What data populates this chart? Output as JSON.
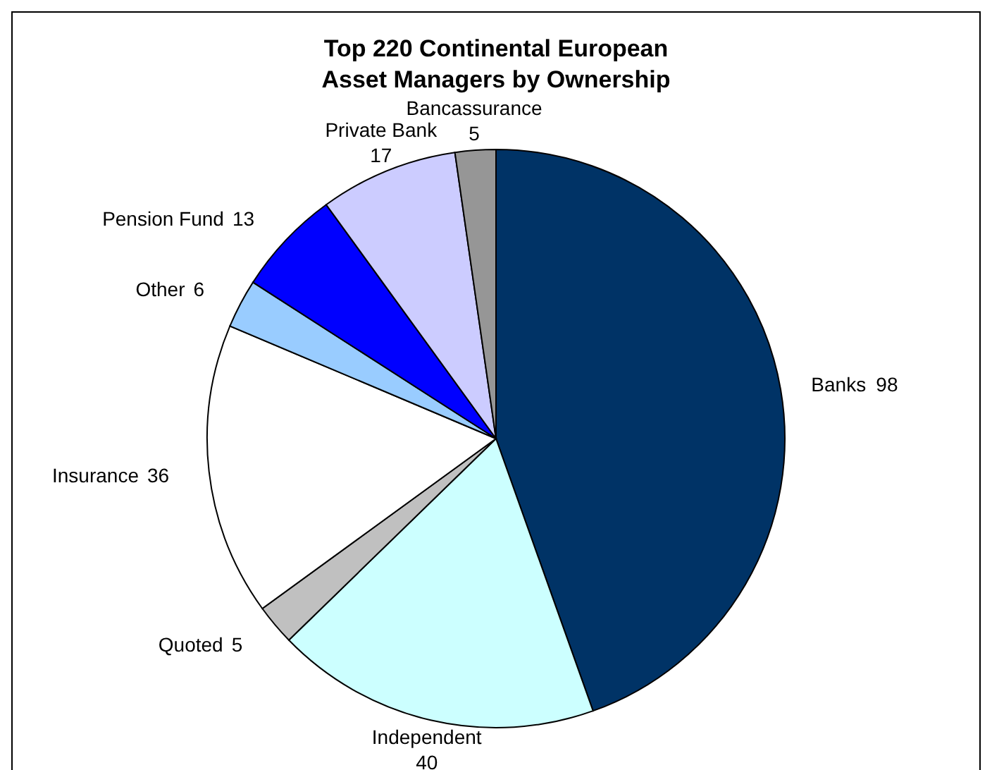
{
  "chart_data": {
    "type": "pie",
    "title": "Top 220 Continental European Asset Managers by Ownership",
    "categories": [
      "Banks",
      "Independent",
      "Quoted",
      "Insurance",
      "Other",
      "Pension Fund",
      "Private Bank",
      "Bancassurance"
    ],
    "values": [
      98,
      40,
      5,
      36,
      6,
      13,
      17,
      5
    ],
    "colors": [
      "#003366",
      "#ccffff",
      "#c0c0c0",
      "#ffffff",
      "#99ccff",
      "#0000ff",
      "#ccccff",
      "#969696"
    ],
    "data_labels": true
  }
}
